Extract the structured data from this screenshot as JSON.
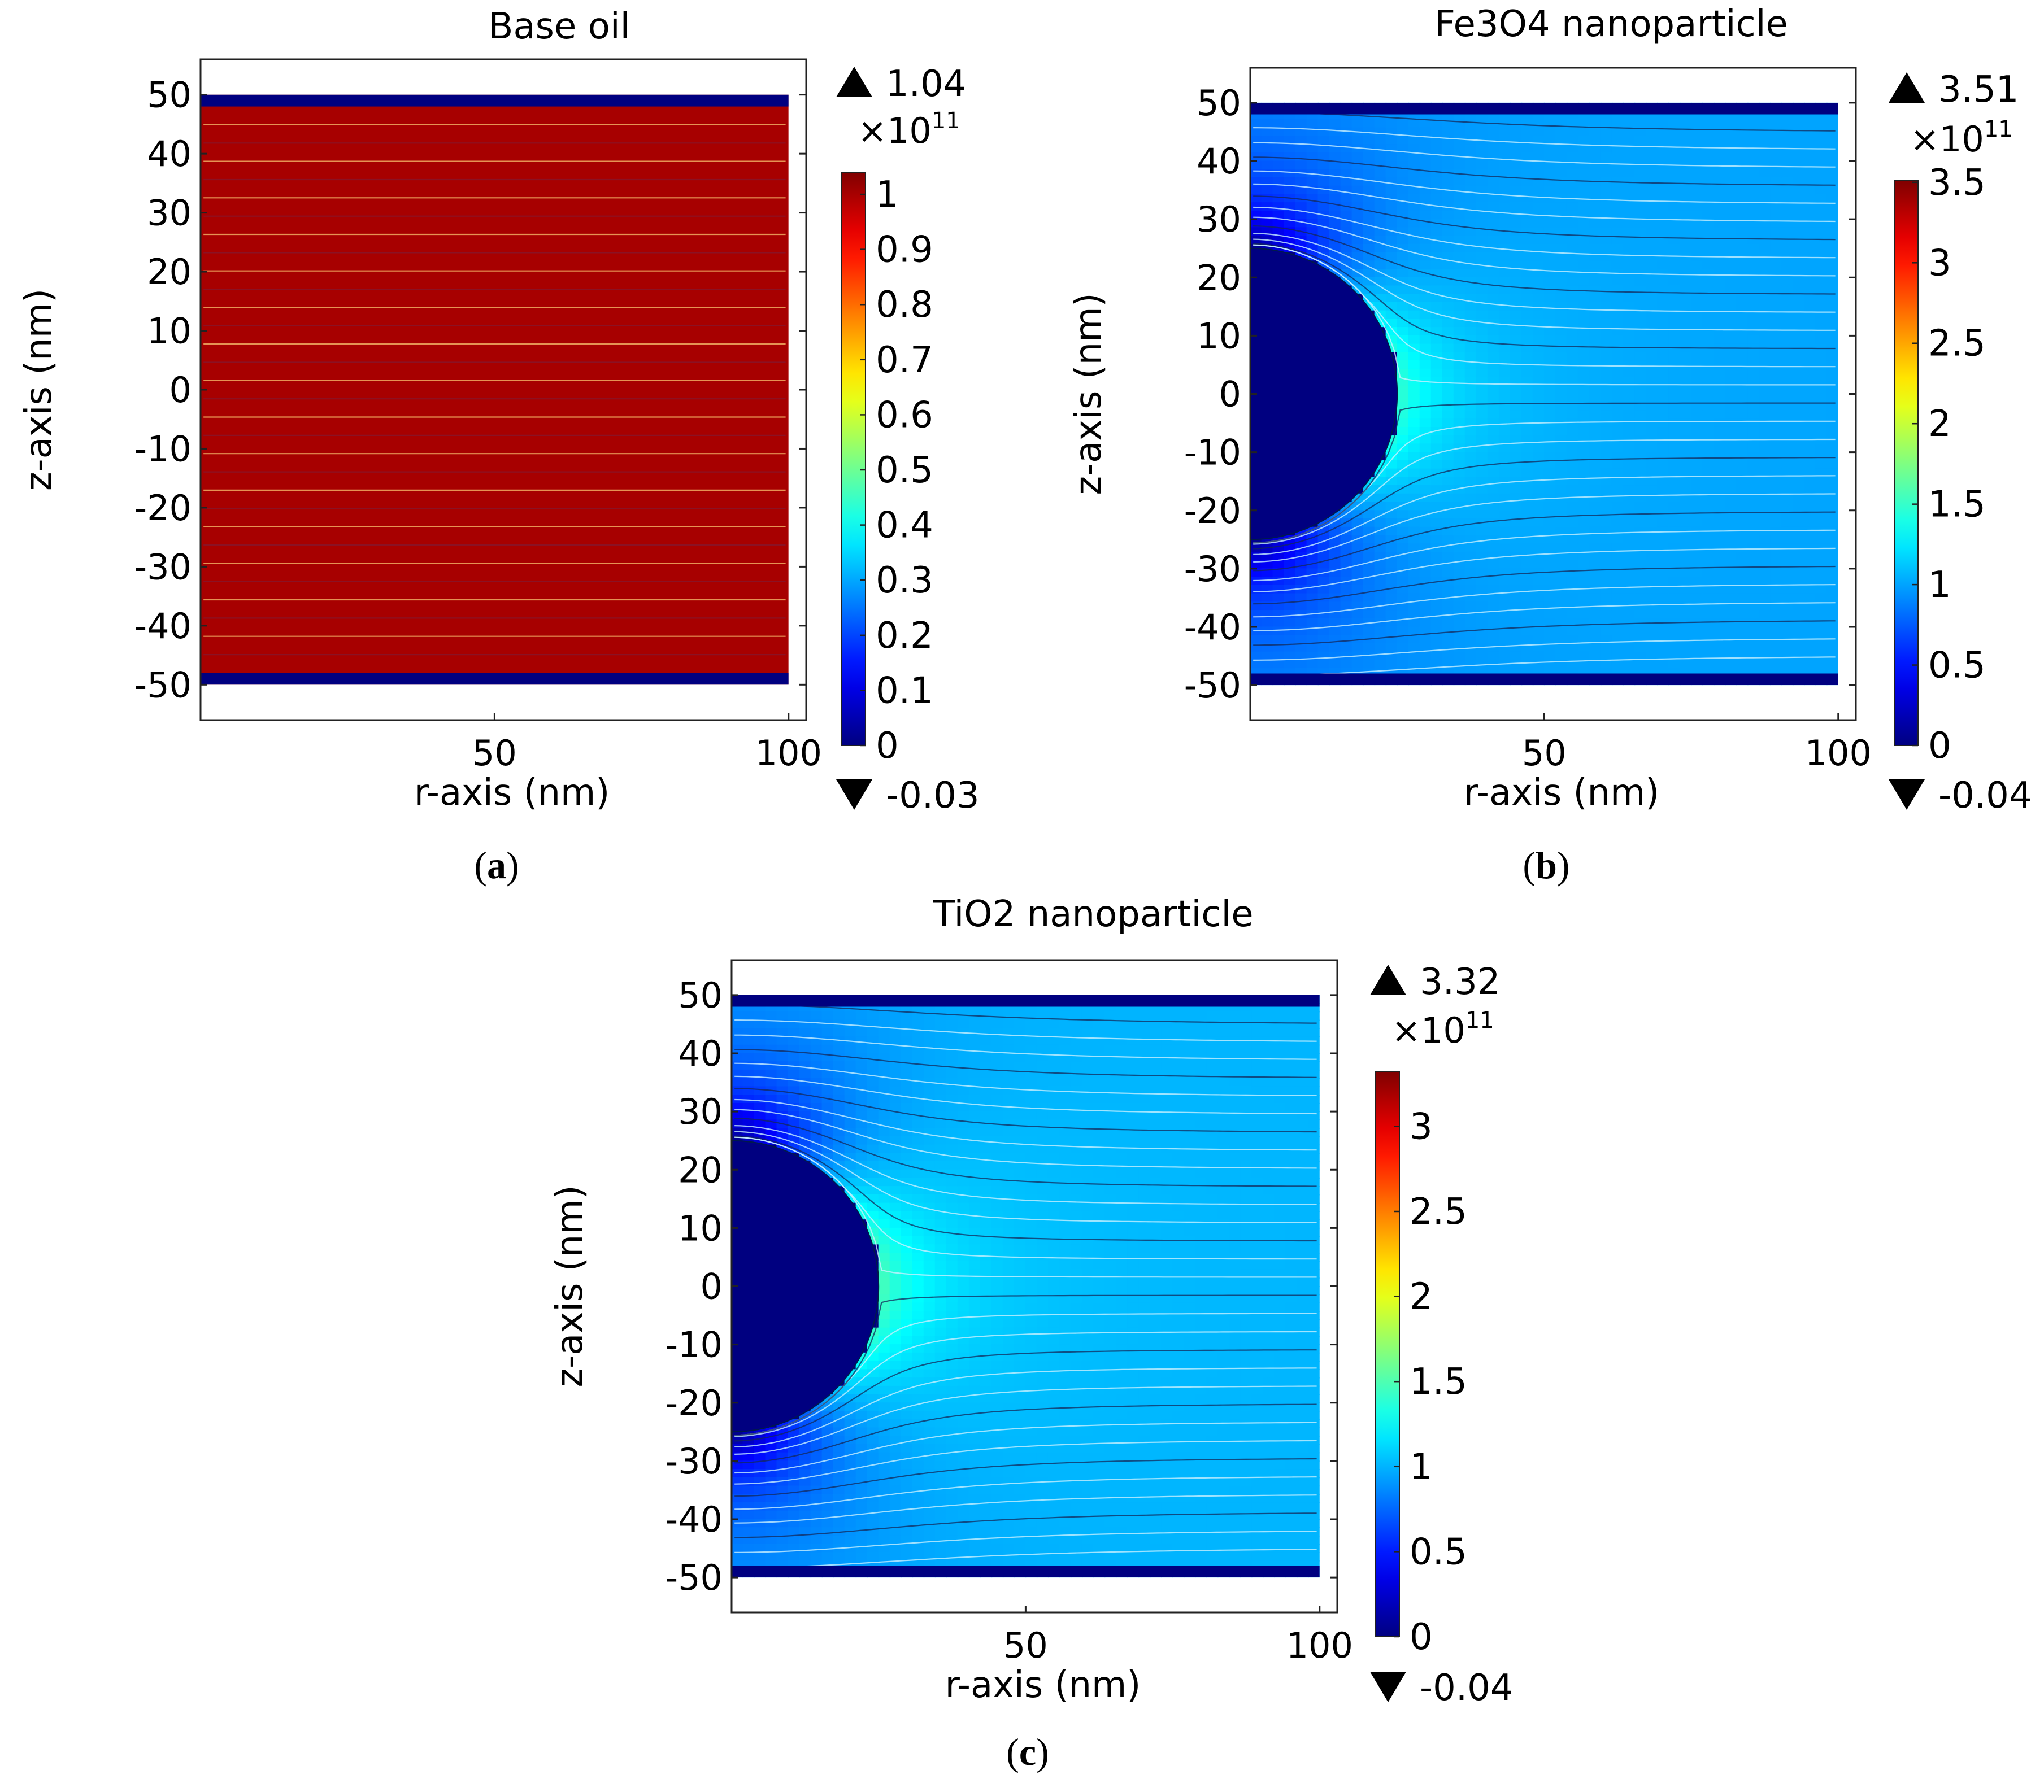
{
  "figure": {
    "domain_units": {
      "r_range": [
        0,
        103
      ],
      "z_range": [
        -56,
        56
      ]
    }
  },
  "chart_data": [
    {
      "type": "heatmap",
      "panel": "(a)",
      "panel_letter": "a",
      "title": "Base oil",
      "xlabel": "r-axis (nm)",
      "ylabel": "z-axis (nm)",
      "xlim": [
        0,
        103
      ],
      "ylim": [
        -56,
        56
      ],
      "xticks": [
        50,
        100
      ],
      "yticks": [
        50,
        40,
        30,
        20,
        10,
        0,
        -10,
        -20,
        -30,
        -40,
        -50
      ],
      "particle_radius": 0,
      "field_value": 1.0,
      "colorbar": {
        "max": 1.04,
        "min": -0.03,
        "exponent": "11",
        "multiplier": "×10",
        "cmax": 1.04,
        "ticks": [
          1,
          0.9,
          0.8,
          0.7,
          0.6,
          0.5,
          0.4,
          0.3,
          0.2,
          0.1,
          0
        ],
        "tick_labels": [
          "1",
          "0.9",
          "0.8",
          "0.7",
          "0.6",
          "0.5",
          "0.4",
          "0.3",
          "0.2",
          "0.1",
          "0"
        ]
      },
      "extreme_labels": {
        "max": "1.04",
        "min": "-0.03"
      }
    },
    {
      "type": "heatmap",
      "panel": "(b)",
      "panel_letter": "b",
      "title": "Fe3O4 nanoparticle",
      "xlabel": "r-axis (nm)",
      "ylabel": "z-axis (nm)",
      "xlim": [
        0,
        103
      ],
      "ylim": [
        -56,
        56
      ],
      "xticks": [
        50,
        100
      ],
      "yticks": [
        50,
        40,
        30,
        20,
        10,
        0,
        -10,
        -20,
        -30,
        -40,
        -50
      ],
      "particle_radius": 25,
      "field_value": 1.0,
      "colorbar": {
        "max": 3.51,
        "min": -0.04,
        "exponent": "11",
        "multiplier": "×10",
        "cmax": 3.51,
        "ticks": [
          3.5,
          3,
          2.5,
          2,
          1.5,
          1,
          0.5,
          0
        ],
        "tick_labels": [
          "3.5",
          "3",
          "2.5",
          "2",
          "1.5",
          "1",
          "0.5",
          "0"
        ]
      },
      "extreme_labels": {
        "max": "3.51",
        "min": "-0.04"
      }
    },
    {
      "type": "heatmap",
      "panel": "(c)",
      "panel_letter": "c",
      "title": "TiO2 nanoparticle",
      "xlabel": "r-axis (nm)",
      "ylabel": "z-axis (nm)",
      "xlim": [
        0,
        103
      ],
      "ylim": [
        -56,
        56
      ],
      "xticks": [
        50,
        100
      ],
      "yticks": [
        50,
        40,
        30,
        20,
        10,
        0,
        -10,
        -20,
        -30,
        -40,
        -50
      ],
      "particle_radius": 25,
      "field_value": 1.0,
      "colorbar": {
        "max": 3.32,
        "min": -0.04,
        "exponent": "11",
        "multiplier": "×10",
        "cmax": 3.32,
        "ticks": [
          3,
          2.5,
          2,
          1.5,
          1,
          0.5,
          0
        ],
        "tick_labels": [
          "3",
          "2.5",
          "2",
          "1.5",
          "1",
          "0.5",
          "0"
        ]
      },
      "extreme_labels": {
        "max": "3.32",
        "min": "-0.04"
      }
    }
  ]
}
